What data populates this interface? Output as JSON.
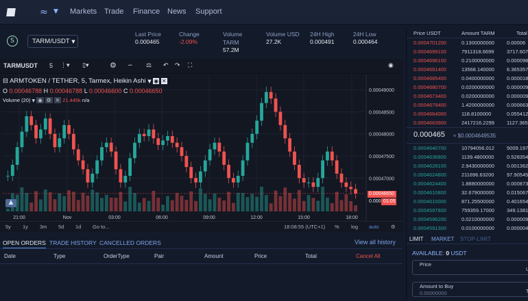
{
  "nav": {
    "items": [
      "Markets",
      "Trade",
      "Finance",
      "News",
      "Support"
    ]
  },
  "ticker": {
    "pair": "TARM/USDT",
    "last_price_label": "Last Price",
    "last_price": "0.000465",
    "change_label": "Change",
    "change": "-2.09%",
    "volume_label": "Volume",
    "volume_unit": "TARM",
    "volume": "57.2M",
    "volume_usd_label": "Volume USD",
    "volume_usd": "27.2K",
    "high_label": "24H High",
    "high": "0.000491",
    "low_label": "24H Low",
    "low": "0.000464"
  },
  "toolbar": {
    "symbol": "TARMUSDT",
    "interval": "5"
  },
  "chart": {
    "legend_title": "ARMTOKEN / TETHER, 5, Tarmex, Heikin Ashi",
    "o_label": "O",
    "o": "0.00046788",
    "h_label": "H",
    "h": "0.00046788",
    "l_label": "L",
    "l": "0.00046600",
    "c_label": "C",
    "c": "0.00046650",
    "volume_label": "Volume (20)",
    "volume_val": "21.445k",
    "volume_na": "n/a",
    "price_tag": "0.00046650",
    "countdown": "01:05",
    "partial_tag": "0.000",
    "time": "18:08:55 (UTC+1)",
    "ranges": [
      "5y",
      "1y",
      "3m",
      "5d",
      "1d",
      "Go to..."
    ],
    "pct": "%",
    "log": "log",
    "auto": "auto",
    "colors": {
      "up": "#26a69a",
      "down": "#ef5350",
      "bg": "#131722"
    }
  },
  "chart_data": {
    "type": "line",
    "title": "ARMTOKEN / TETHER, 5, Tarmex, Heikin Ashi",
    "xlabel": "",
    "ylabel": "",
    "x_ticks": [
      "21:00",
      "Nov",
      "03:00",
      "06:00",
      "09:00",
      "12:00",
      "15:00",
      "18:00"
    ],
    "y_ticks": [
      "0.00049000",
      "0.00048500",
      "0.00048000",
      "0.00047500",
      "0.00047000"
    ],
    "ylim": [
      0.000464,
      0.0004922
    ],
    "series": [
      {
        "values": [
          0.0004705,
          0.000473,
          0.000477,
          0.0004805,
          0.000484,
          0.000482,
          0.000479,
          0.000481,
          0.0004835,
          0.00048,
          0.000477,
          0.000479,
          0.000482,
          0.00048,
          0.0004765,
          0.000474,
          0.000472,
          0.000469,
          0.000471,
          0.000474,
          0.000477,
          0.000478,
          0.000476,
          0.000472,
          0.000469,
          0.0004705,
          0.0004745,
          0.000478,
          0.00048,
          0.0004795,
          0.000481,
          0.000479,
          0.0004775,
          0.0004785,
          0.0004795,
          0.000478,
          0.000477,
          0.000475,
          0.0004725,
          0.00047,
          0.000469,
          0.0004715,
          0.000474,
          0.0004765,
          0.000478,
          0.000476,
          0.000473,
          0.00047,
          0.000469,
          0.0004705,
          0.000474,
          0.000478,
          0.00048,
          0.000483,
          0.000487,
          0.0004895,
          0.000488,
          0.000485,
          0.000482,
          0.000479,
          0.000476,
          0.000473,
          0.00047,
          0.000469,
          0.000469,
          0.000468,
          0.00047,
          0.000474,
          0.000476,
          0.000474,
          0.000471,
          0.000469,
          0.000468,
          0.0004675,
          0.0004665
        ]
      }
    ],
    "grid": true
  },
  "orders": {
    "tabs": [
      "OPEN ORDERS",
      "TRADE HISTORY",
      "CANCELLED ORDERS"
    ],
    "view_all": "View all history",
    "columns": [
      "Date",
      "Type",
      "OrderType",
      "Pair",
      "Amount",
      "Price",
      "Total"
    ],
    "cancel_all": "Cancel All"
  },
  "book": {
    "headers": [
      "Price USDT",
      "Amount TARM",
      "Total"
    ],
    "asks": [
      [
        "0.0004701200",
        "0.1300000000",
        "0.00006"
      ],
      [
        "0.0004699100",
        "7911318.6699",
        "3717.607"
      ],
      [
        "0.0004696100",
        "0.2100000000",
        "0.000098"
      ],
      [
        "0.0004691400",
        "13568.140000",
        "6.365357"
      ],
      [
        "0.0004685400",
        "0.0400000000",
        "0.000018"
      ],
      [
        "0.0004680700",
        "0.0200000000",
        "0.000009"
      ],
      [
        "0.0004673400",
        "0.0200000000",
        "0.000009"
      ],
      [
        "0.0004679400",
        "1.4200000000",
        "0.000663"
      ],
      [
        "0.0004664000",
        "118.8100000",
        "0.055412"
      ],
      [
        "0.0004663900",
        "2417216.2299",
        "1127.365"
      ]
    ],
    "mid_price": "0.000465",
    "mid_usd": "≈ $0.0004649535",
    "bids": [
      [
        "0.0004640700",
        "10794056.012",
        "5009.1979"
      ],
      [
        "0.0004636800",
        "1139.4800000",
        "0.528354"
      ],
      [
        "0.0004628100",
        "2.9430000000",
        "0.001362"
      ],
      [
        "0.0004624800",
        "211696.63200",
        "97.90545"
      ],
      [
        "0.0004624400",
        "1.8880000000",
        "0.000873"
      ],
      [
        "0.0004610800",
        "32.679000000",
        "0.015067"
      ],
      [
        "0.0004610000",
        "871.25500000",
        "0.401654"
      ],
      [
        "0.0004597800",
        "759359.17000",
        "349.1381"
      ],
      [
        "0.0004596200",
        "0.0210000000",
        "0.000009"
      ],
      [
        "0.0004591300",
        "0.0100000000",
        "0.000004"
      ]
    ]
  },
  "form": {
    "tabs": [
      "LIMIT",
      "MARKET",
      "STOP-LIMIT"
    ],
    "available_label": "AVAILABLE:",
    "available_value": "0",
    "available_unit": "USDT",
    "price_label": "Price",
    "price_suffix": "U",
    "amount_label": "Amount to Buy",
    "amount_placeholder": "0.00000000",
    "amount_suffix": "T"
  }
}
